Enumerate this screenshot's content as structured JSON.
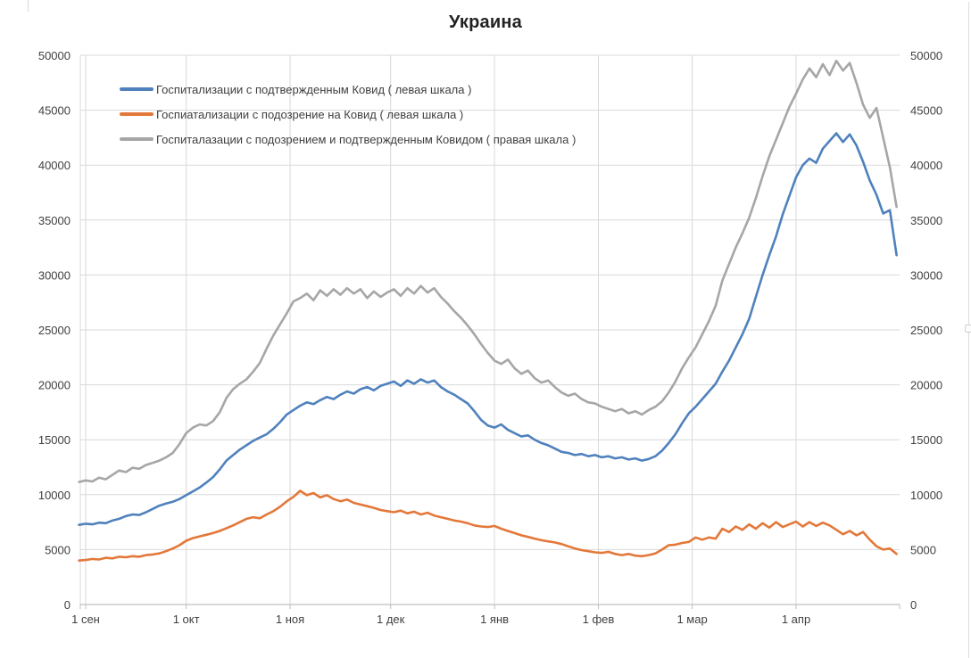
{
  "chart_data": {
    "type": "line",
    "title": "Украина",
    "legend_position": "top-left-inside",
    "grid": true,
    "x_axis": {
      "tick_labels": [
        "1 сен",
        "1 окт",
        "1 ноя",
        "1 дек",
        "1 янв",
        "1 фев",
        "1 мар",
        "1 апр"
      ],
      "tick_days": [
        0,
        30,
        61,
        91,
        122,
        153,
        181,
        212
      ]
    },
    "y_axis": {
      "min": 0,
      "max": 50000,
      "step": 5000,
      "tick_labels": [
        "0",
        "5000",
        "10000",
        "15000",
        "20000",
        "25000",
        "30000",
        "35000",
        "40000",
        "45000",
        "50000"
      ],
      "dual_axis": true
    },
    "series": [
      {
        "id": "confirmed",
        "name": "Госпитализации с подтвержденным Ковид ( левая шкала )",
        "color": "#4f81bd",
        "axis": "left",
        "start_day": -2,
        "step_days": 2,
        "values": [
          7250,
          7350,
          7300,
          7450,
          7400,
          7650,
          7800,
          8050,
          8200,
          8150,
          8400,
          8700,
          9000,
          9200,
          9350,
          9600,
          9950,
          10300,
          10650,
          11100,
          11600,
          12300,
          13100,
          13600,
          14100,
          14500,
          14900,
          15200,
          15500,
          16000,
          16600,
          17300,
          17700,
          18100,
          18400,
          18250,
          18600,
          18900,
          18700,
          19100,
          19400,
          19200,
          19600,
          19800,
          19500,
          19900,
          20100,
          20300,
          19900,
          20400,
          20100,
          20500,
          20200,
          20400,
          19800,
          19400,
          19100,
          18700,
          18300,
          17600,
          16800,
          16300,
          16100,
          16400,
          15900,
          15600,
          15300,
          15400,
          15000,
          14700,
          14500,
          14200,
          13900,
          13800,
          13600,
          13700,
          13500,
          13600,
          13400,
          13500,
          13300,
          13400,
          13200,
          13300,
          13100,
          13250,
          13500,
          14000,
          14700,
          15500,
          16500,
          17400,
          18000,
          18700,
          19400,
          20100,
          21200,
          22200,
          23400,
          24600,
          26000,
          28000,
          30000,
          31800,
          33500,
          35500,
          37200,
          38900,
          40000,
          40600,
          40200,
          41500,
          42200,
          42900,
          42100,
          42800,
          41800,
          40300,
          38600,
          37300,
          35600,
          35900,
          31800
        ]
      },
      {
        "id": "suspected",
        "name": "Госпиатализации с подозрение на Ковид ( левая шкала )",
        "color": "#e3783a",
        "axis": "left",
        "start_day": -2,
        "step_days": 2,
        "values": [
          4000,
          4050,
          4150,
          4100,
          4250,
          4200,
          4350,
          4300,
          4400,
          4350,
          4500,
          4550,
          4650,
          4850,
          5100,
          5400,
          5800,
          6050,
          6200,
          6350,
          6500,
          6700,
          6950,
          7200,
          7500,
          7800,
          7950,
          7850,
          8200,
          8500,
          8900,
          9400,
          9800,
          10350,
          9950,
          10150,
          9750,
          9950,
          9600,
          9400,
          9550,
          9250,
          9100,
          8950,
          8800,
          8600,
          8500,
          8400,
          8550,
          8300,
          8450,
          8200,
          8350,
          8100,
          7950,
          7800,
          7650,
          7550,
          7400,
          7200,
          7100,
          7050,
          7150,
          6900,
          6700,
          6500,
          6300,
          6150,
          6000,
          5850,
          5750,
          5650,
          5500,
          5300,
          5100,
          4950,
          4850,
          4750,
          4700,
          4800,
          4600,
          4500,
          4600,
          4450,
          4400,
          4500,
          4650,
          5000,
          5400,
          5450,
          5600,
          5700,
          6100,
          5900,
          6100,
          6000,
          6900,
          6600,
          7100,
          6800,
          7300,
          6900,
          7400,
          7000,
          7500,
          7050,
          7300,
          7550,
          7100,
          7500,
          7150,
          7450,
          7200,
          6800,
          6400,
          6700,
          6300,
          6600,
          5900,
          5300,
          5000,
          5100,
          4600
        ]
      },
      {
        "id": "total",
        "name": "Госпиталазации с подозрением и подтвержденным Ковидом ( правая шкала )",
        "color": "#a6a6a6",
        "axis": "right",
        "start_day": -2,
        "step_days": 2,
        "values": [
          11150,
          11300,
          11200,
          11550,
          11400,
          11800,
          12200,
          12050,
          12450,
          12350,
          12700,
          12900,
          13100,
          13400,
          13800,
          14600,
          15600,
          16100,
          16400,
          16300,
          16700,
          17500,
          18800,
          19600,
          20100,
          20500,
          21200,
          22000,
          23300,
          24500,
          25500,
          26500,
          27600,
          27900,
          28300,
          27700,
          28600,
          28100,
          28700,
          28200,
          28800,
          28300,
          28700,
          27900,
          28500,
          28000,
          28400,
          28700,
          28100,
          28800,
          28300,
          29000,
          28400,
          28800,
          28000,
          27400,
          26700,
          26100,
          25400,
          24600,
          23700,
          22900,
          22200,
          21900,
          22300,
          21500,
          21000,
          21300,
          20600,
          20200,
          20400,
          19800,
          19300,
          19000,
          19200,
          18700,
          18400,
          18300,
          18000,
          17800,
          17600,
          17800,
          17400,
          17600,
          17300,
          17700,
          18000,
          18500,
          19300,
          20300,
          21500,
          22500,
          23400,
          24600,
          25800,
          27200,
          29500,
          31000,
          32500,
          33800,
          35200,
          37000,
          39000,
          40800,
          42300,
          43800,
          45300,
          46500,
          47800,
          48800,
          48000,
          49200,
          48200,
          49500,
          48600,
          49300,
          47500,
          45500,
          44300,
          45200,
          42500,
          39800,
          36200
        ]
      }
    ],
    "colors": {
      "gridline": "#d9d9d9",
      "axis_line": "#bfbfbf",
      "axis_text": "#404040",
      "title_text": "#222222"
    }
  }
}
